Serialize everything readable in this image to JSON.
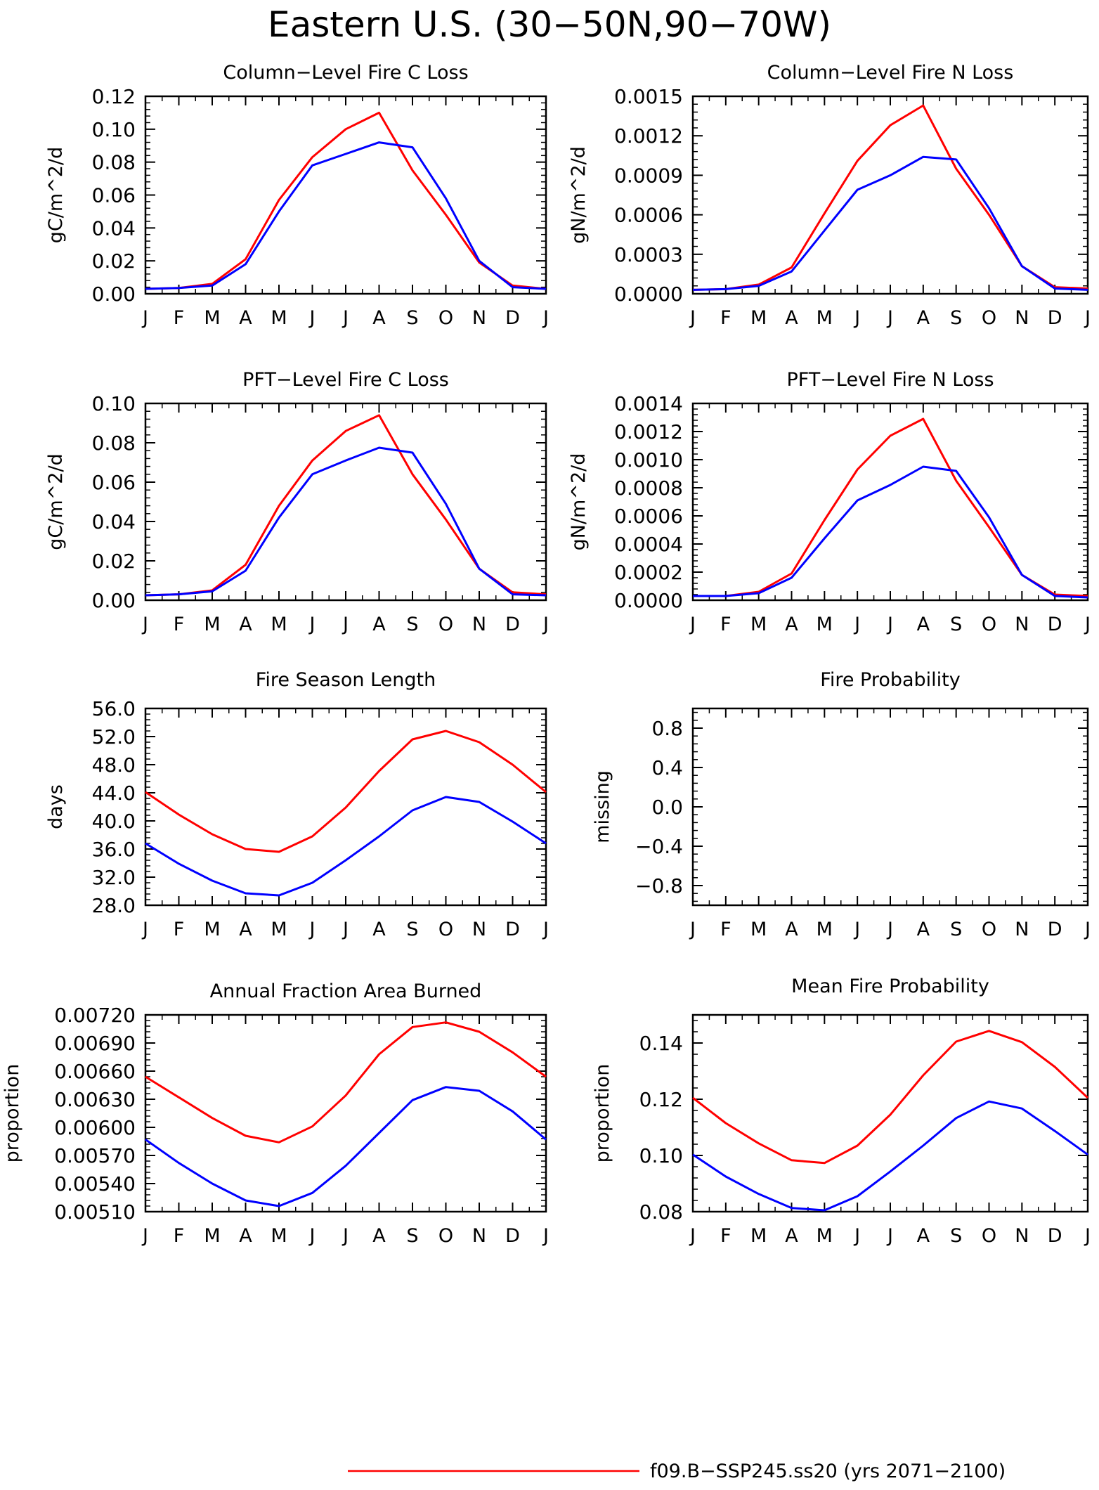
{
  "title": "Eastern U.S. (30−50N,90−70W)",
  "month_labels": [
    "J",
    "F",
    "M",
    "A",
    "M",
    "J",
    "J",
    "A",
    "S",
    "O",
    "N",
    "D",
    "J"
  ],
  "colors": {
    "series_1": "#ff0000",
    "series_2": "#0000ff",
    "axes": "#000000"
  },
  "legend": {
    "entries": [
      {
        "label": "f09.B−SSP245.ss20 (yrs 2071−2100)",
        "color": "#ff0000"
      }
    ]
  },
  "chart_data": [
    {
      "type": "line",
      "title": "Column−Level Fire C Loss",
      "ylabel": "gC/m^2/d",
      "ylim": [
        0,
        0.12
      ],
      "yticks": [
        "0.00",
        "0.02",
        "0.04",
        "0.06",
        "0.08",
        "0.10",
        "0.12"
      ],
      "x": [
        0,
        1,
        2,
        3,
        4,
        5,
        6,
        7,
        8,
        9,
        10,
        11,
        12
      ],
      "series": [
        {
          "color": "#ff0000",
          "values": [
            0.003,
            0.0035,
            0.006,
            0.021,
            0.057,
            0.083,
            0.1,
            0.11,
            0.075,
            0.048,
            0.019,
            0.005,
            0.003
          ]
        },
        {
          "color": "#0000ff",
          "values": [
            0.003,
            0.0035,
            0.005,
            0.018,
            0.05,
            0.078,
            0.085,
            0.092,
            0.089,
            0.058,
            0.02,
            0.004,
            0.003
          ]
        }
      ]
    },
    {
      "type": "line",
      "title": "Column−Level Fire N Loss",
      "ylabel": "gN/m^2/d",
      "ylim": [
        0,
        0.0015
      ],
      "yticks": [
        "0.0000",
        "0.0003",
        "0.0006",
        "0.0009",
        "0.0012",
        "0.0015"
      ],
      "x": [
        0,
        1,
        2,
        3,
        4,
        5,
        6,
        7,
        8,
        9,
        10,
        11,
        12
      ],
      "series": [
        {
          "color": "#ff0000",
          "values": [
            3e-05,
            3.5e-05,
            7e-05,
            0.0002,
            0.00061,
            0.00101,
            0.00128,
            0.00143,
            0.00095,
            0.0006,
            0.00021,
            5e-05,
            4e-05
          ]
        },
        {
          "color": "#0000ff",
          "values": [
            3e-05,
            3.5e-05,
            6e-05,
            0.00017,
            0.00048,
            0.00079,
            0.0009,
            0.00104,
            0.00102,
            0.00065,
            0.00021,
            4e-05,
            3e-05
          ]
        }
      ]
    },
    {
      "type": "line",
      "title": "PFT−Level Fire C Loss",
      "ylabel": "gC/m^2/d",
      "ylim": [
        0,
        0.1
      ],
      "yticks": [
        "0.00",
        "0.02",
        "0.04",
        "0.06",
        "0.08",
        "0.10"
      ],
      "x": [
        0,
        1,
        2,
        3,
        4,
        5,
        6,
        7,
        8,
        9,
        10,
        11,
        12
      ],
      "series": [
        {
          "color": "#ff0000",
          "values": [
            0.0025,
            0.003,
            0.005,
            0.018,
            0.048,
            0.071,
            0.086,
            0.094,
            0.064,
            0.041,
            0.016,
            0.004,
            0.003
          ]
        },
        {
          "color": "#0000ff",
          "values": [
            0.0025,
            0.003,
            0.0045,
            0.015,
            0.042,
            0.064,
            0.071,
            0.0775,
            0.075,
            0.049,
            0.016,
            0.003,
            0.0025
          ]
        }
      ]
    },
    {
      "type": "line",
      "title": "PFT−Level Fire N Loss",
      "ylabel": "gN/m^2/d",
      "ylim": [
        0,
        0.0014
      ],
      "yticks": [
        "0.0000",
        "0.0002",
        "0.0004",
        "0.0006",
        "0.0008",
        "0.0010",
        "0.0012",
        "0.0014"
      ],
      "x": [
        0,
        1,
        2,
        3,
        4,
        5,
        6,
        7,
        8,
        9,
        10,
        11,
        12
      ],
      "series": [
        {
          "color": "#ff0000",
          "values": [
            3e-05,
            3e-05,
            6e-05,
            0.00019,
            0.00057,
            0.00093,
            0.00117,
            0.00129,
            0.00085,
            0.00052,
            0.00018,
            4e-05,
            3e-05
          ]
        },
        {
          "color": "#0000ff",
          "values": [
            3e-05,
            3e-05,
            5e-05,
            0.00016,
            0.00044,
            0.00071,
            0.00082,
            0.00095,
            0.00092,
            0.00059,
            0.00018,
            3e-05,
            2e-05
          ]
        }
      ]
    },
    {
      "type": "line",
      "title": "Fire Season Length",
      "ylabel": "days",
      "ylim": [
        28,
        56
      ],
      "yticks": [
        "28.0",
        "32.0",
        "36.0",
        "40.0",
        "44.0",
        "48.0",
        "52.0",
        "56.0"
      ],
      "x": [
        0,
        1,
        2,
        3,
        4,
        5,
        6,
        7,
        8,
        9,
        10,
        11,
        12
      ],
      "series": [
        {
          "color": "#ff0000",
          "values": [
            44.1,
            40.9,
            38.1,
            36.0,
            35.6,
            37.8,
            41.9,
            47.1,
            51.6,
            52.8,
            51.2,
            48.0,
            44.1
          ]
        },
        {
          "color": "#0000ff",
          "values": [
            36.8,
            33.9,
            31.5,
            29.7,
            29.4,
            31.2,
            34.4,
            37.8,
            41.5,
            43.4,
            42.7,
            39.9,
            36.8
          ]
        }
      ]
    },
    {
      "type": "line",
      "title": "Fire Probability",
      "ylabel": "missing",
      "ylim": [
        -1.0,
        1.0
      ],
      "yticks": [
        "−0.8",
        "−0.4",
        "0.0",
        "0.4",
        "0.8"
      ],
      "ytick_values": [
        -0.8,
        -0.4,
        0.0,
        0.4,
        0.8
      ],
      "x": [
        0,
        1,
        2,
        3,
        4,
        5,
        6,
        7,
        8,
        9,
        10,
        11,
        12
      ],
      "series": []
    },
    {
      "type": "line",
      "title": "Annual Fraction Area Burned",
      "ylabel": "proportion",
      "ylim": [
        0.0051,
        0.0072
      ],
      "yticks": [
        "0.00510",
        "0.00540",
        "0.00570",
        "0.00600",
        "0.00630",
        "0.00660",
        "0.00690",
        "0.00720"
      ],
      "x": [
        0,
        1,
        2,
        3,
        4,
        5,
        6,
        7,
        8,
        9,
        10,
        11,
        12
      ],
      "series": [
        {
          "color": "#ff0000",
          "values": [
            0.00654,
            0.00632,
            0.0061,
            0.00591,
            0.00584,
            0.00601,
            0.00634,
            0.00678,
            0.00707,
            0.00712,
            0.00702,
            0.0068,
            0.00654
          ]
        },
        {
          "color": "#0000ff",
          "values": [
            0.00587,
            0.00562,
            0.0054,
            0.00522,
            0.00516,
            0.0053,
            0.00559,
            0.00594,
            0.00629,
            0.00643,
            0.00639,
            0.00617,
            0.00587
          ]
        }
      ]
    },
    {
      "type": "line",
      "title": "Mean Fire Probability",
      "ylabel": "proportion",
      "ylim": [
        0.08,
        0.15
      ],
      "yticks": [
        "0.08",
        "0.10",
        "0.12",
        "0.14"
      ],
      "ytick_values": [
        0.08,
        0.1,
        0.12,
        0.14
      ],
      "x": [
        0,
        1,
        2,
        3,
        4,
        5,
        6,
        7,
        8,
        9,
        10,
        11,
        12
      ],
      "series": [
        {
          "color": "#ff0000",
          "values": [
            0.1205,
            0.1115,
            0.1043,
            0.0983,
            0.0973,
            0.1035,
            0.1145,
            0.1285,
            0.1405,
            0.1443,
            0.1403,
            0.1315,
            0.1205
          ]
        },
        {
          "color": "#0000ff",
          "values": [
            0.1003,
            0.0925,
            0.0863,
            0.0813,
            0.0805,
            0.0855,
            0.0943,
            0.1035,
            0.1133,
            0.1192,
            0.1167,
            0.1087,
            0.1003
          ]
        }
      ]
    }
  ]
}
